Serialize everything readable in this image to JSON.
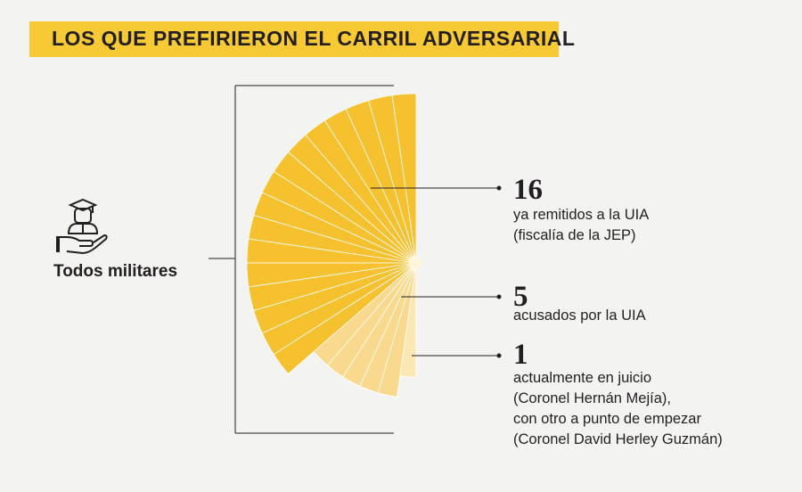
{
  "title": "LOS QUE PREFIRIERON EL CARRIL ADVERSARIAL",
  "subject": "Todos militares",
  "icon": "military-cap-hand-icon",
  "colors": {
    "banner": "#f6c935",
    "strong": "#f6c12e",
    "medium": "#f8d98d",
    "light": "#fbe7b4"
  },
  "chart_data": {
    "type": "radial-fan",
    "total": 22,
    "groups": [
      {
        "number": "16",
        "value": 16,
        "lines": [
          "ya remitidos a la UIA",
          "(fiscalía de la JEP)"
        ],
        "color": "#f6c12e"
      },
      {
        "number": "5",
        "value": 5,
        "lines": [
          "acusados por la UIA"
        ],
        "color": "#f8d98d"
      },
      {
        "number": "1",
        "value": 1,
        "lines": [
          "actualmente en juicio",
          "(Coronel Hernán Mejía),",
          "con otro a punto de empezar",
          "(Coronel David Herley Guzmán)"
        ],
        "color": "#fbe7b4"
      }
    ]
  }
}
